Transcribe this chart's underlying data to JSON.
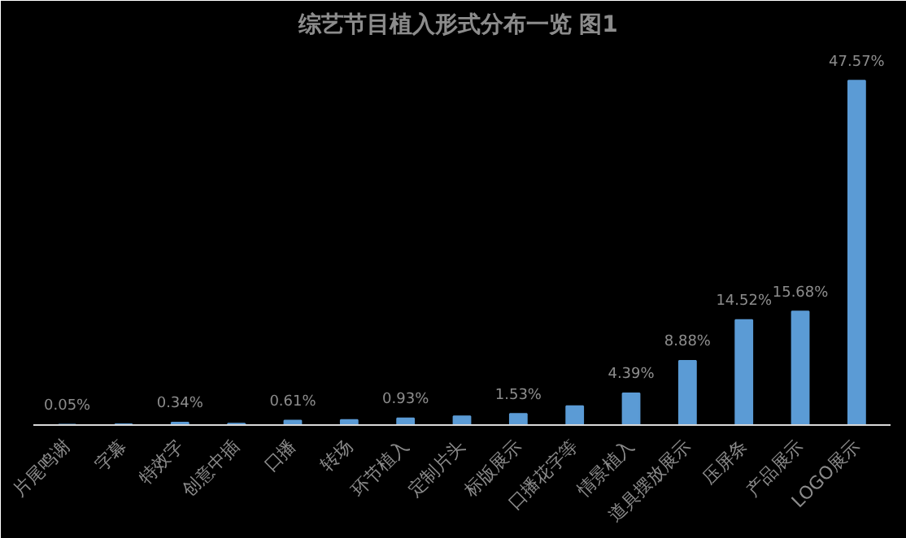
{
  "chart_data": {
    "type": "bar",
    "title": "综艺节目植入形式分布一览  图1",
    "categories": [
      "片尾鸣谢",
      "字幕",
      "特效字",
      "创意中插",
      "口播",
      "转场",
      "环节植入",
      "定制片头",
      "标版展示",
      "口播花字等",
      "情景植入",
      "道具摆放展示",
      "压屏条",
      "产品展示",
      "LOGO展示"
    ],
    "values": [
      0.05,
      0.1,
      0.34,
      0.2,
      0.61,
      0.7,
      0.93,
      1.2,
      1.53,
      2.6,
      4.39,
      8.88,
      14.52,
      15.68,
      47.57
    ],
    "value_labels": [
      "0.05%",
      null,
      "0.34%",
      null,
      "0.61%",
      null,
      "0.93%",
      null,
      "1.53%",
      null,
      "4.39%",
      "8.88%",
      "14.52%",
      "15.68%",
      "47.57%"
    ],
    "color": "#5b9bd5",
    "grid": false,
    "tick_labels": "x"
  }
}
